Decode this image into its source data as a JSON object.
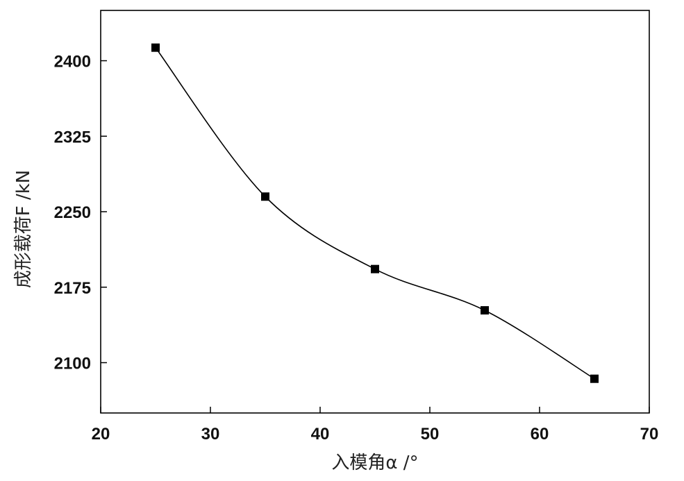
{
  "chart_data": {
    "type": "scatter",
    "xlabel": "入模角α /°",
    "ylabel": "成形载荷F /kN",
    "xlim": [
      20,
      70
    ],
    "ylim": [
      2050,
      2450
    ],
    "x_ticks": [
      20,
      30,
      40,
      50,
      60,
      70
    ],
    "y_ticks": [
      2100,
      2175,
      2250,
      2325,
      2400
    ],
    "grid": false,
    "legend": "none",
    "series": [
      {
        "x": [
          25,
          35,
          45,
          55,
          65
        ],
        "y": [
          2413,
          2265,
          2193,
          2152,
          2084
        ],
        "marker": "square",
        "fit_curve": "smooth spline"
      }
    ],
    "colors": {
      "marker": "#000000",
      "curve": "#000000",
      "axis": "#000000"
    }
  }
}
